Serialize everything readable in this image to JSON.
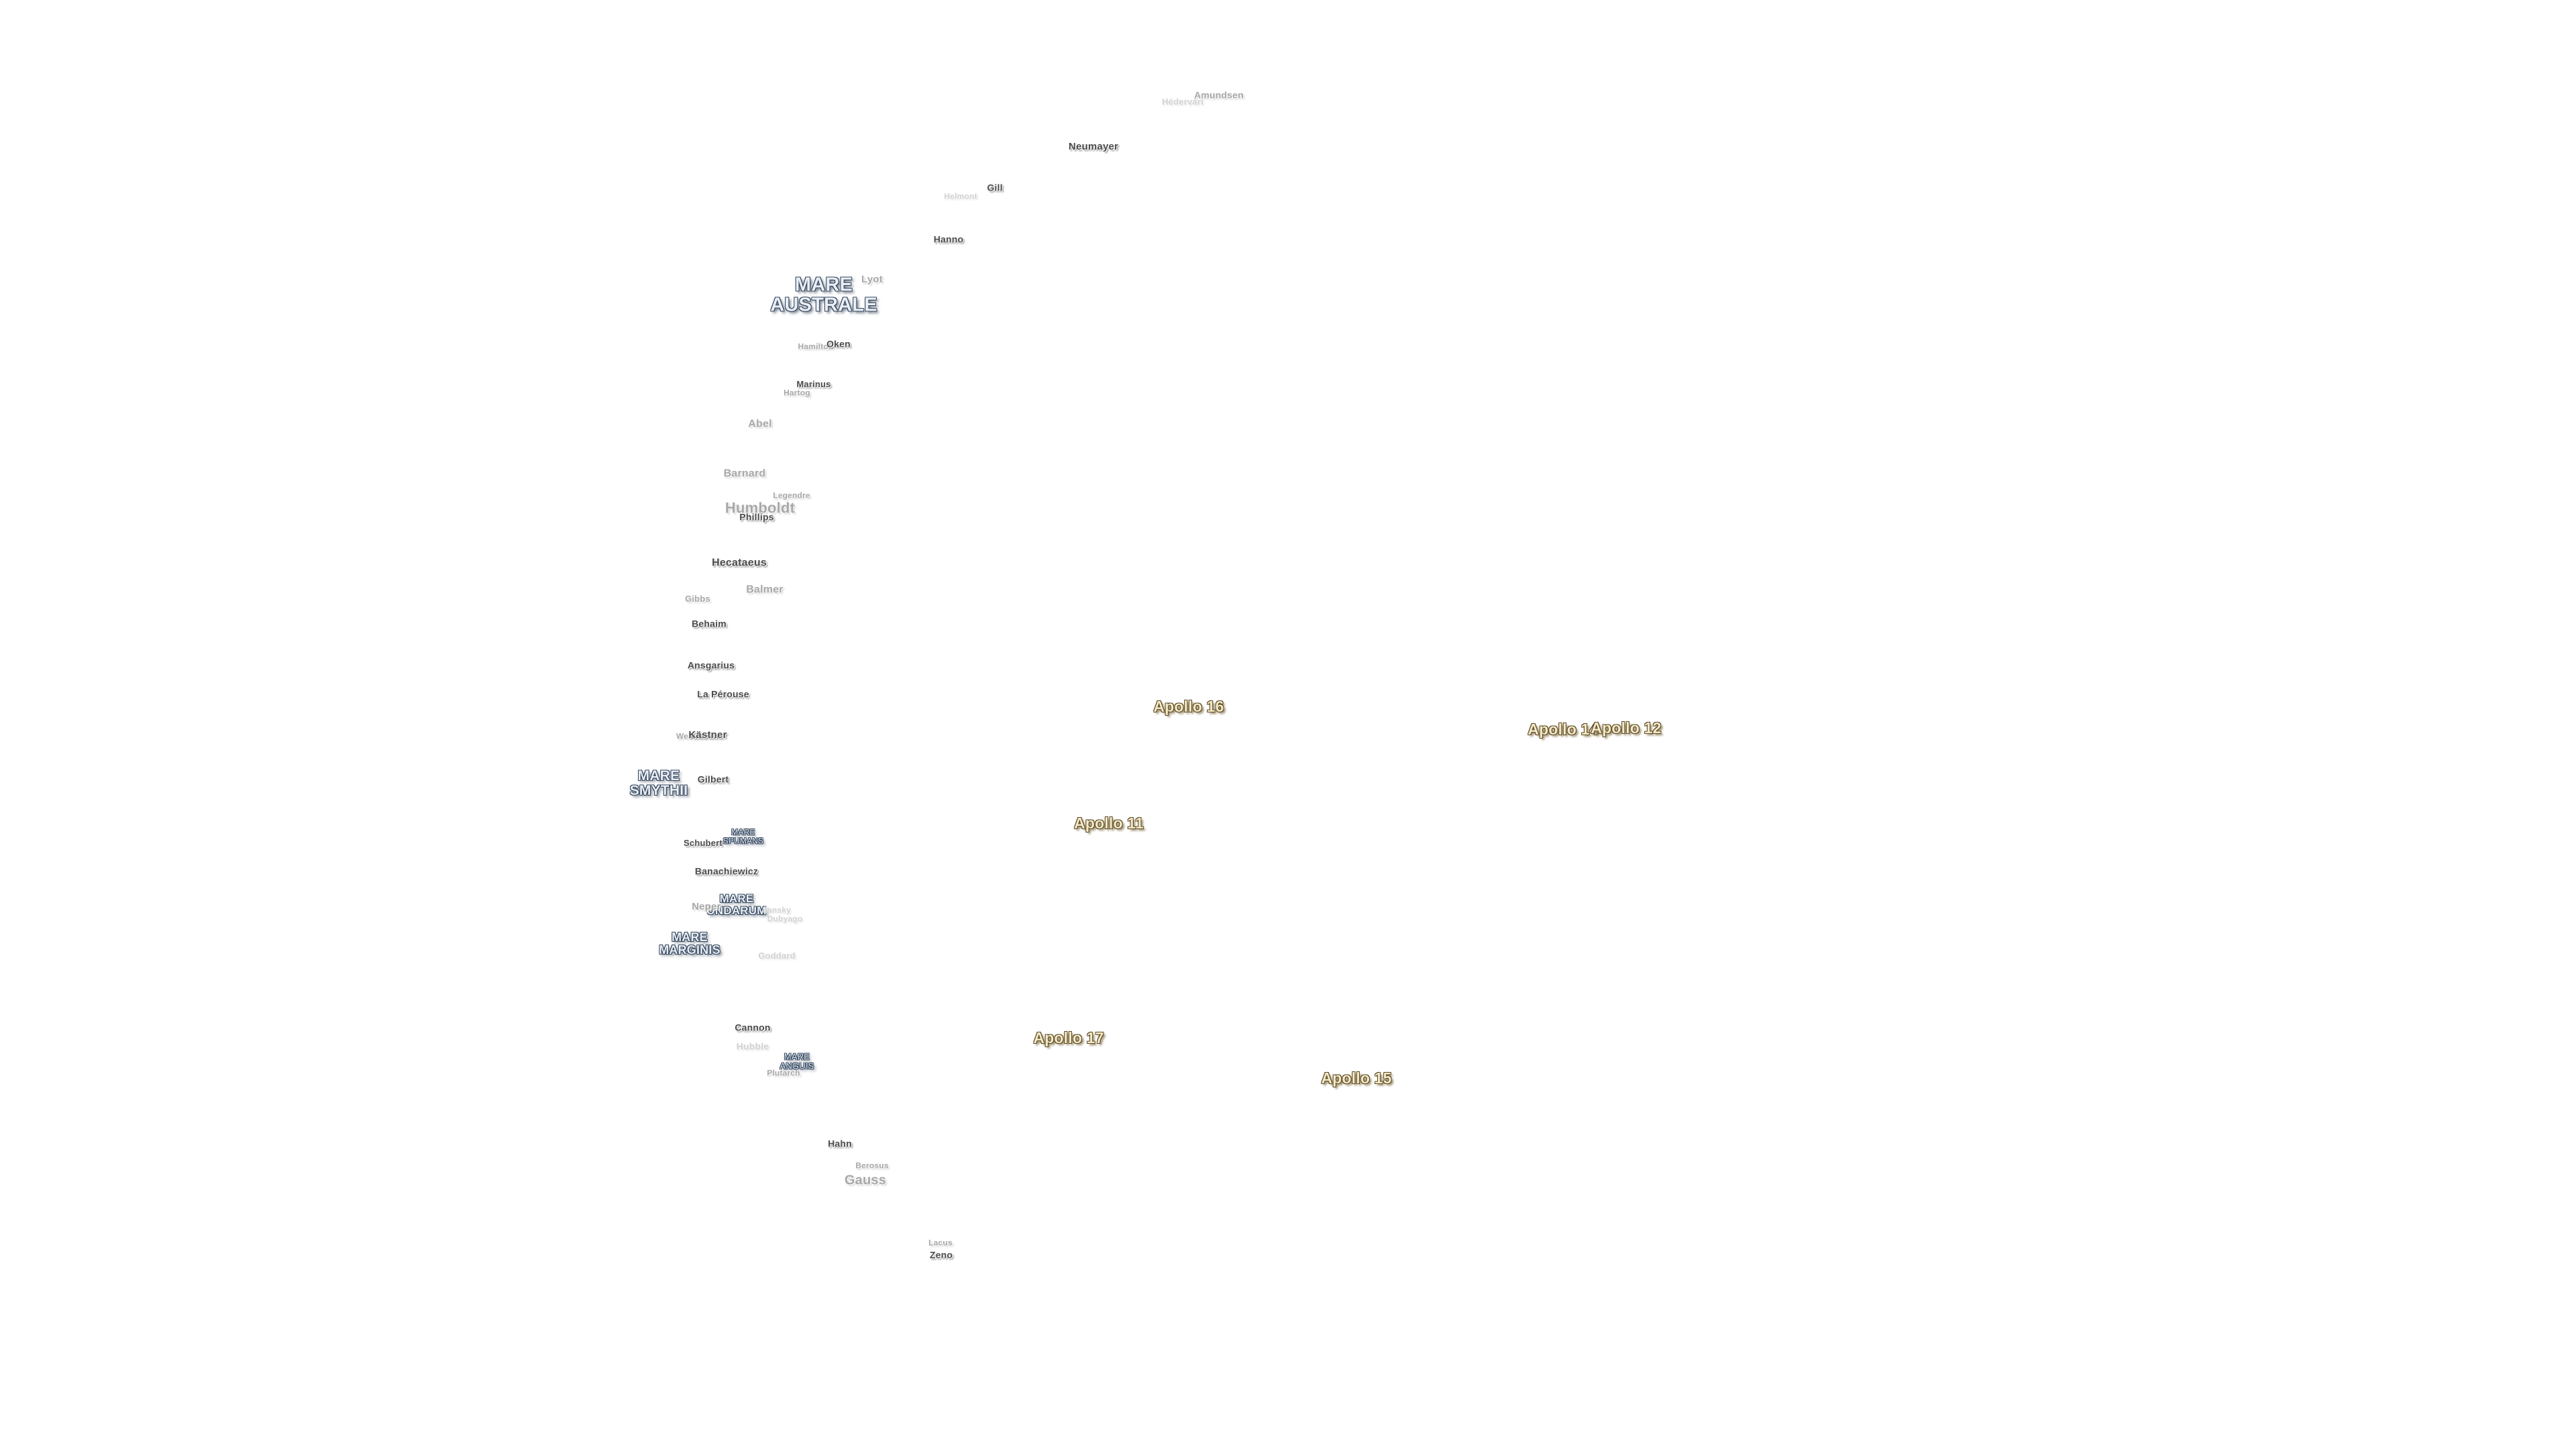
{
  "map": {
    "maria": {
      "australe": [
        "MARE",
        "AUSTRALE"
      ],
      "smythii": [
        "MARE",
        "SMYTHII"
      ],
      "spumans": [
        "MARE",
        "SPUMANS"
      ],
      "undarum": [
        "MARE",
        "UNDARUM"
      ],
      "marginis": [
        "MARE",
        "MARGINIS"
      ],
      "anguis": [
        "MARE",
        "ANGUIS"
      ]
    },
    "apollo_sites": {
      "apollo_11": "Apollo 11",
      "apollo_12": "Apollo 12",
      "apollo_14": "Apollo 14",
      "apollo_15": "Apollo 15",
      "apollo_16": "Apollo 16",
      "apollo_17": "Apollo 17"
    },
    "craters": {
      "amundsen": "Amundsen",
      "hedervari": "Hédervári",
      "neumayer": "Neumayer",
      "gill": "Gill",
      "helmont": "Helmont",
      "hanno": "Hanno",
      "lyot": "Lyot",
      "hamilton": "Hamilton",
      "oken": "Oken",
      "marinus": "Marinus",
      "hartog": "Hartog",
      "abel": "Abel",
      "barnard": "Barnard",
      "legendre": "Legendre",
      "humboldt": "Humboldt",
      "phillips": "Phillips",
      "hecataeus": "Hecataeus",
      "gibbs": "Gibbs",
      "balmer": "Balmer",
      "behaim": "Behaim",
      "ansgarius": "Ansgarius",
      "la_perouse": "La Pérouse",
      "weierstrass": "Weierstrass",
      "kastner": "Kästner",
      "gilbert": "Gilbert",
      "schubert": "Schubert",
      "banachiewicz": "Banachiewicz",
      "neper": "Neper",
      "jansky": "Jansky",
      "dubyago": "Dubyago",
      "goddard": "Goddard",
      "cannon": "Cannon",
      "hubble": "Hubble",
      "plutarch": "Plutarch",
      "hahn": "Hahn",
      "berosus": "Berosus",
      "gauss": "Gauss",
      "lacus": "Lacus",
      "zeno": "Zeno"
    }
  }
}
